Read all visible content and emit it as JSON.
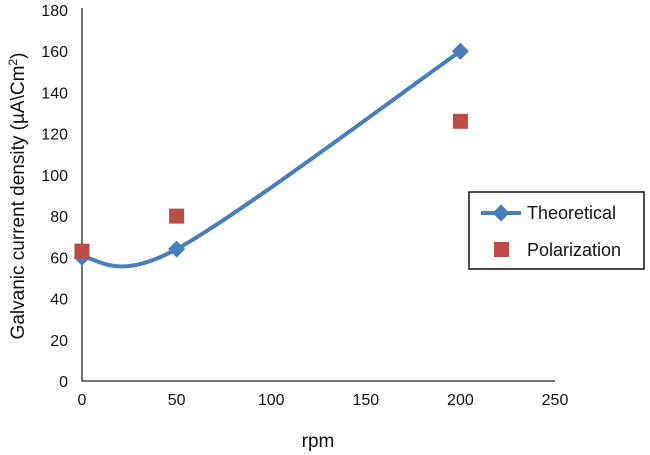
{
  "chart_data": {
    "type": "line",
    "title": "",
    "xlabel": "rpm",
    "ylabel": "Galvanic current density (µA\\Cm²)",
    "xlim": [
      0,
      250
    ],
    "ylim": [
      0,
      180
    ],
    "x_ticks": [
      0,
      50,
      100,
      150,
      200,
      250
    ],
    "y_ticks": [
      0,
      20,
      40,
      60,
      80,
      100,
      120,
      140,
      160,
      180
    ],
    "grid": false,
    "legend_position": "right",
    "series": [
      {
        "name": "Theoretical",
        "style": "smoothed line with diamond markers",
        "color": "#4a7ebb",
        "points": [
          [
            0,
            60
          ],
          [
            50,
            64
          ],
          [
            200,
            160
          ]
        ]
      },
      {
        "name": "Polarization",
        "style": "square markers only",
        "color": "#be4b48",
        "points": [
          [
            0,
            63
          ],
          [
            50,
            80
          ],
          [
            200,
            126
          ]
        ]
      }
    ]
  },
  "labels": {
    "xlabel": "rpm",
    "ylabel_main": "Galvanic current density (µA\\Cm",
    "ylabel_sup": "2",
    "ylabel_end": ")",
    "legend": [
      "Theoretical",
      "Polarization"
    ]
  }
}
